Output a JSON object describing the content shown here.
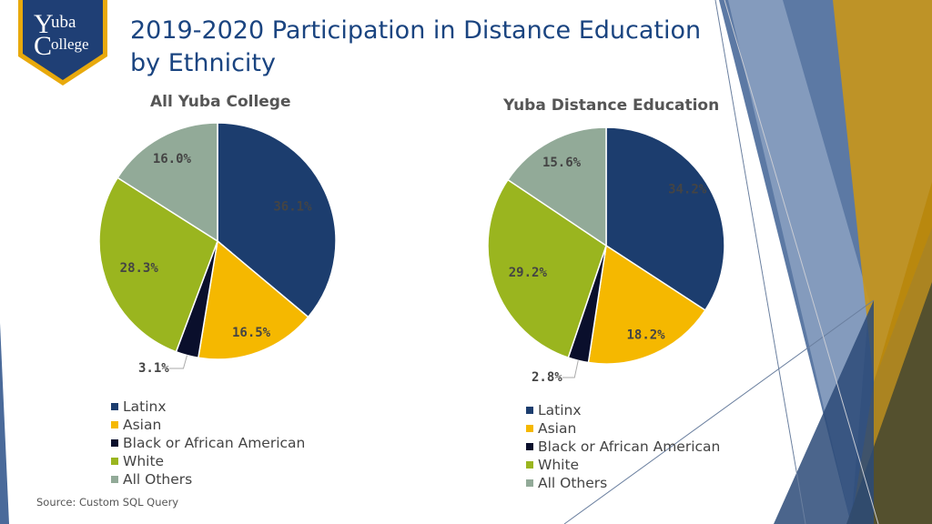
{
  "slide": {
    "title": "2019-2020 Participation in Distance Education by Ethnicity",
    "source": "Source: Custom SQL Query",
    "logo": {
      "line1": "uba",
      "line2": "ollege",
      "cap1": "Y",
      "cap2": "C"
    }
  },
  "colors": {
    "title": "#1a4480",
    "logo_bg": "#1f3f75",
    "logo_border": "#e8a90c",
    "deco_blue": "#4a6a9a",
    "deco_gold": "#c9961a",
    "deco_olive": "#4a4a30"
  },
  "chart_data": [
    {
      "type": "pie",
      "title": "All Yuba College",
      "categories": [
        "Latinx",
        "Asian",
        "Black or African American",
        "White",
        "All Others"
      ],
      "values": [
        36.1,
        16.5,
        3.1,
        28.3,
        16.0
      ],
      "data_labels": [
        "36.1%",
        "16.5%",
        "3.1%",
        "28.3%",
        "16.0%"
      ],
      "colors": [
        "#1c3d6e",
        "#f5b800",
        "#0a0f2c",
        "#9ab51f",
        "#92aa98"
      ],
      "start_angle": "12 o'clock, clockwise",
      "legend": "bottom"
    },
    {
      "type": "pie",
      "title": "Yuba Distance Education",
      "categories": [
        "Latinx",
        "Asian",
        "Black or African American",
        "White",
        "All Others"
      ],
      "values": [
        34.2,
        18.2,
        2.8,
        29.2,
        15.6
      ],
      "data_labels": [
        "34.2%",
        "18.2%",
        "2.8%",
        "29.2%",
        "15.6%"
      ],
      "colors": [
        "#1c3d6e",
        "#f5b800",
        "#0a0f2c",
        "#9ab51f",
        "#92aa98"
      ],
      "start_angle": "12 o'clock, clockwise",
      "legend": "bottom"
    }
  ]
}
